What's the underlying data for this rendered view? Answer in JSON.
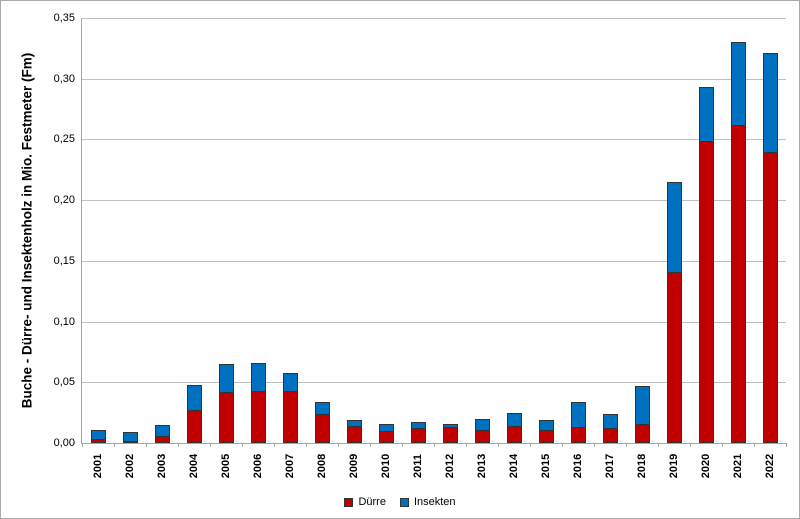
{
  "chart_data": {
    "type": "bar",
    "stacked": true,
    "title": "",
    "xlabel": "",
    "ylabel": "Buche - Dürre- und Insektenholz in Mio. Festmeter (Fm)",
    "ylim": [
      0,
      0.35
    ],
    "ytick_step": 0.05,
    "ytick_labels": [
      "0,00",
      "0,05",
      "0,10",
      "0,15",
      "0,20",
      "0,25",
      "0,30",
      "0,35"
    ],
    "grid": true,
    "legend_position": "bottom-center",
    "categories": [
      "2001",
      "2002",
      "2003",
      "2004",
      "2005",
      "2006",
      "2007",
      "2008",
      "2009",
      "2010",
      "2011",
      "2012",
      "2013",
      "2014",
      "2015",
      "2016",
      "2017",
      "2018",
      "2019",
      "2020",
      "2021",
      "2022"
    ],
    "series": [
      {
        "name": "Dürre",
        "color": "#C00000",
        "values": [
          0.003,
          0.002,
          0.006,
          0.027,
          0.042,
          0.043,
          0.043,
          0.024,
          0.014,
          0.01,
          0.012,
          0.013,
          0.011,
          0.014,
          0.011,
          0.013,
          0.012,
          0.016,
          0.141,
          0.249,
          0.262,
          0.24
        ]
      },
      {
        "name": "Insekten",
        "color": "#0070C0",
        "values": [
          0.008,
          0.007,
          0.009,
          0.021,
          0.023,
          0.023,
          0.015,
          0.01,
          0.005,
          0.006,
          0.005,
          0.003,
          0.009,
          0.011,
          0.008,
          0.021,
          0.012,
          0.031,
          0.074,
          0.044,
          0.068,
          0.081
        ]
      }
    ],
    "axis_color": "#A6A6A6",
    "gridline_color": "#BFBFBF",
    "bar_border_color": "#333333"
  },
  "legend": {
    "items": [
      {
        "label": "Dürre",
        "color": "#C00000"
      },
      {
        "label": "Insekten",
        "color": "#0070C0"
      }
    ]
  }
}
